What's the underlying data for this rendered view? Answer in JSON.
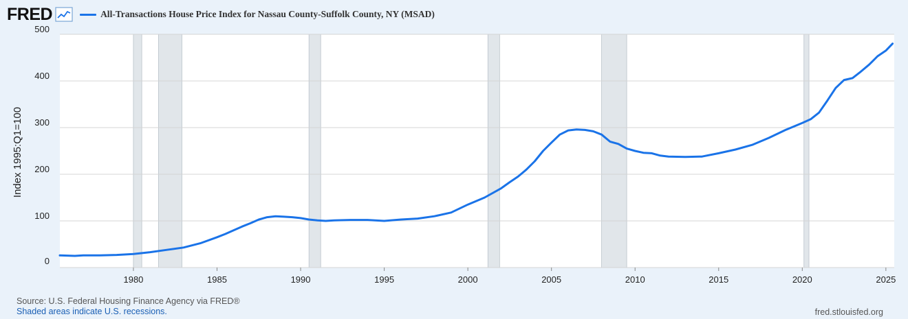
{
  "header": {
    "logo_text": "FRED",
    "logo_icon": "line-chart-icon",
    "legend_label": "All-Transactions House Price Index for Nassau County-Suffolk County, NY (MSAD)",
    "legend_color": "#1a73e8"
  },
  "footer": {
    "source": "Source: U.S. Federal Housing Finance Agency via FRED®",
    "recession_note": "Shaded areas indicate U.S. recessions.",
    "site": "fred.stlouisfed.org"
  },
  "chart_data": {
    "type": "line",
    "title": "",
    "ylabel": "Index 1995:Q1=100",
    "xlabel": "",
    "xlim": [
      1975.6,
      2025.5
    ],
    "ylim": [
      0,
      500
    ],
    "yticks": [
      0,
      100,
      200,
      300,
      400,
      500
    ],
    "xticks": [
      1980,
      1985,
      1990,
      1995,
      2000,
      2005,
      2010,
      2015,
      2020,
      2025
    ],
    "grid": true,
    "legend_position": "top",
    "line_color": "#1a73e8",
    "recessions": [
      [
        1980.0,
        1980.5
      ],
      [
        1981.5,
        1982.9
      ],
      [
        1990.5,
        1991.2
      ],
      [
        2001.2,
        2001.9
      ],
      [
        2008.0,
        2009.5
      ],
      [
        2020.1,
        2020.4
      ]
    ],
    "series": [
      {
        "x": [
          1975.6,
          1976.5,
          1977.0,
          1978.0,
          1979.0,
          1980.0,
          1981.0,
          1982.0,
          1983.0,
          1984.0,
          1985.0,
          1985.5,
          1986.0,
          1986.5,
          1987.0,
          1987.5,
          1988.0,
          1988.5,
          1989.0,
          1989.5,
          1990.0,
          1990.5,
          1991.0,
          1991.5,
          1992.0,
          1993.0,
          1994.0,
          1995.0,
          1996.0,
          1997.0,
          1998.0,
          1999.0,
          2000.0,
          2001.0,
          2002.0,
          2002.5,
          2003.0,
          2003.5,
          2004.0,
          2004.5,
          2005.0,
          2005.5,
          2006.0,
          2006.5,
          2007.0,
          2007.5,
          2008.0,
          2008.5,
          2009.0,
          2009.5,
          2010.0,
          2010.5,
          2011.0,
          2011.5,
          2012.0,
          2013.0,
          2014.0,
          2015.0,
          2016.0,
          2017.0,
          2018.0,
          2019.0,
          2020.0,
          2020.5,
          2021.0,
          2021.5,
          2022.0,
          2022.5,
          2023.0,
          2023.5,
          2024.0,
          2024.5,
          2025.0,
          2025.4
        ],
        "y": [
          26,
          25,
          26,
          26,
          27,
          29,
          33,
          38,
          43,
          52,
          65,
          72,
          80,
          88,
          95,
          103,
          108,
          110,
          109,
          108,
          106,
          103,
          101,
          100,
          101,
          102,
          102,
          100,
          103,
          105,
          110,
          118,
          135,
          150,
          170,
          183,
          195,
          210,
          228,
          250,
          268,
          285,
          294,
          296,
          295,
          292,
          285,
          270,
          265,
          255,
          250,
          246,
          245,
          240,
          238,
          237,
          238,
          245,
          253,
          263,
          278,
          295,
          310,
          318,
          332,
          358,
          385,
          402,
          406,
          420,
          435,
          453,
          465,
          480
        ]
      }
    ]
  }
}
